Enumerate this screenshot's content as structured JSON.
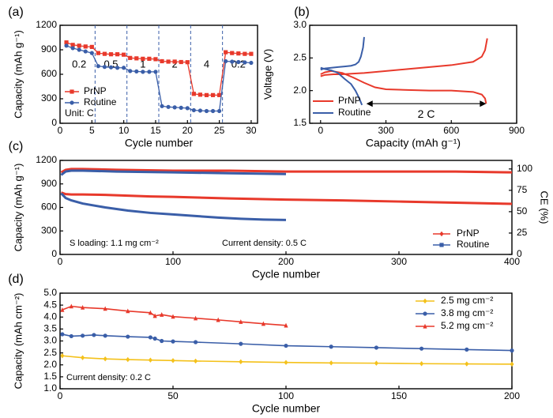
{
  "colors": {
    "prnp": "#e8392b",
    "routine": "#3a5ea8",
    "ld25": "#f4c11a",
    "frame": "#000000"
  },
  "chart_data": [
    {
      "id": "a",
      "panel_label": "(a)",
      "type": "scatter",
      "xlabel": "Cycle number",
      "ylabel": "Capacity (mAh g⁻¹)",
      "xlim": [
        0,
        31
      ],
      "ylim": [
        0,
        1200
      ],
      "xticks": [
        0,
        5,
        10,
        15,
        20,
        25,
        30
      ],
      "yticks": [
        0,
        300,
        600,
        900,
        1200
      ],
      "legend": "bottom-left",
      "unit_text": "Unit: C",
      "rate_dividers": [
        5.5,
        10.5,
        15.5,
        20.5,
        25.5
      ],
      "rate_labels": [
        {
          "text": "0.2",
          "x": 3,
          "y": 600
        },
        {
          "text": "0.5",
          "x": 8,
          "y": 600
        },
        {
          "text": "1",
          "x": 13,
          "y": 600
        },
        {
          "text": "2",
          "x": 18,
          "y": 600
        },
        {
          "text": "4",
          "x": 23,
          "y": 600
        },
        {
          "text": "0.2",
          "x": 28,
          "y": 600
        }
      ],
      "series": [
        {
          "name": "PrNP",
          "color_key": "prnp",
          "marker": "square",
          "x": [
            1,
            2,
            3,
            4,
            5,
            6,
            7,
            8,
            9,
            10,
            11,
            12,
            13,
            14,
            15,
            16,
            17,
            18,
            19,
            20,
            21,
            22,
            23,
            24,
            25,
            26,
            27,
            28,
            29,
            30
          ],
          "y": [
            990,
            960,
            950,
            940,
            935,
            860,
            850,
            845,
            845,
            840,
            800,
            795,
            790,
            790,
            785,
            760,
            755,
            755,
            750,
            748,
            360,
            350,
            345,
            345,
            345,
            870,
            860,
            855,
            850,
            850
          ]
        },
        {
          "name": "Routine",
          "color_key": "routine",
          "marker": "circle",
          "x": [
            1,
            2,
            3,
            4,
            5,
            6,
            7,
            8,
            9,
            10,
            11,
            12,
            13,
            14,
            15,
            16,
            17,
            18,
            19,
            20,
            21,
            22,
            23,
            24,
            25,
            26,
            27,
            28,
            29,
            30
          ],
          "y": [
            950,
            920,
            900,
            880,
            860,
            700,
            690,
            685,
            680,
            680,
            640,
            635,
            630,
            630,
            630,
            210,
            200,
            195,
            190,
            185,
            160,
            155,
            150,
            150,
            150,
            760,
            755,
            750,
            745,
            740
          ]
        }
      ]
    },
    {
      "id": "b",
      "panel_label": "(b)",
      "type": "line",
      "xlabel": "Capacity (mAh g⁻¹)",
      "ylabel": "Voltage (V)",
      "xlim": [
        -50,
        900
      ],
      "ylim": [
        1.5,
        3.0
      ],
      "xticks": [
        0,
        300,
        600,
        900
      ],
      "yticks": [
        1.5,
        2.0,
        2.5,
        3.0
      ],
      "legend": "bottom-left",
      "annotation": "2 C",
      "arrow": {
        "x0": 210,
        "x1": 760,
        "y": 1.8
      },
      "series": [
        {
          "name": "PrNP",
          "color_key": "prnp",
          "segments": [
            {
              "x": [
                0,
                20,
                50,
                100,
                150,
                200,
                250,
                300,
                400,
                500,
                600,
                700,
                740,
                755,
                760
              ],
              "y": [
                2.25,
                2.28,
                2.3,
                2.27,
                2.2,
                2.12,
                2.05,
                2.02,
                2.01,
                2.0,
                2.0,
                1.98,
                1.94,
                1.88,
                1.8
              ]
            },
            {
              "x": [
                0,
                20,
                60,
                100,
                150,
                200,
                300,
                400,
                500,
                600,
                700,
                740,
                755,
                765
              ],
              "y": [
                2.22,
                2.24,
                2.25,
                2.25,
                2.26,
                2.27,
                2.3,
                2.33,
                2.36,
                2.39,
                2.44,
                2.52,
                2.62,
                2.8
              ]
            }
          ]
        },
        {
          "name": "Routine",
          "color_key": "routine",
          "segments": [
            {
              "x": [
                0,
                20,
                50,
                80,
                110,
                140,
                160,
                175,
                185,
                190
              ],
              "y": [
                2.35,
                2.33,
                2.31,
                2.27,
                2.18,
                2.1,
                2.0,
                1.9,
                1.82,
                1.78
              ]
            },
            {
              "x": [
                0,
                20,
                50,
                80,
                110,
                140,
                160,
                175,
                185,
                195,
                200
              ],
              "y": [
                2.32,
                2.34,
                2.35,
                2.36,
                2.37,
                2.38,
                2.4,
                2.44,
                2.52,
                2.66,
                2.82
              ]
            }
          ]
        }
      ]
    },
    {
      "id": "c",
      "panel_label": "(c)",
      "type": "scatter",
      "xlabel": "Cycle number",
      "ylabel": "Capacity (mAh g⁻¹)",
      "y2label": "CE (%)",
      "xlim": [
        0,
        400
      ],
      "ylim": [
        0,
        1200
      ],
      "y2lim": [
        0,
        110
      ],
      "xticks": [
        0,
        100,
        200,
        300,
        400
      ],
      "yticks": [
        0,
        300,
        600,
        900,
        1200
      ],
      "y2ticks": [
        0,
        25,
        50,
        75,
        100
      ],
      "legend": "bottom-right",
      "notes": [
        "S loading: 1.1 mg cm⁻²",
        "Current density: 0.5 C"
      ],
      "series": [
        {
          "name": "PrNP",
          "color_key": "prnp",
          "axis": "y",
          "x": [
            1,
            5,
            10,
            20,
            40,
            60,
            80,
            100,
            150,
            200,
            250,
            300,
            350,
            400
          ],
          "y": [
            790,
            770,
            765,
            765,
            760,
            750,
            740,
            735,
            715,
            700,
            690,
            675,
            660,
            645
          ]
        },
        {
          "name": "Routine",
          "color_key": "routine",
          "axis": "y",
          "x": [
            1,
            5,
            10,
            20,
            40,
            60,
            80,
            100,
            120,
            140,
            160,
            180,
            200
          ],
          "y": [
            780,
            720,
            690,
            650,
            600,
            560,
            530,
            510,
            490,
            470,
            455,
            445,
            440
          ]
        },
        {
          "name": "PrNP",
          "color_key": "prnp",
          "axis": "y2",
          "x": [
            1,
            5,
            10,
            20,
            50,
            100,
            150,
            200,
            250,
            300,
            350,
            400
          ],
          "y": [
            96,
            99,
            100,
            100,
            99,
            98,
            98,
            97,
            97,
            97,
            97,
            96
          ]
        },
        {
          "name": "Routine",
          "color_key": "routine",
          "axis": "y2",
          "x": [
            1,
            5,
            10,
            20,
            50,
            100,
            150,
            200
          ],
          "y": [
            93,
            97,
            98,
            98,
            97,
            96,
            95,
            94
          ]
        }
      ]
    },
    {
      "id": "d",
      "panel_label": "(d)",
      "type": "scatter",
      "xlabel": "Cycle number",
      "ylabel": "Capacity (mAh cm⁻²)",
      "xlim": [
        0,
        200
      ],
      "ylim": [
        1.0,
        5.0
      ],
      "xticks": [
        0,
        50,
        100,
        150,
        200
      ],
      "yticks": [
        1.0,
        1.5,
        2.0,
        2.5,
        3.0,
        3.5,
        4.0,
        4.5,
        5.0
      ],
      "legend": "top-right",
      "notes": [
        "Current density: 0.2 C"
      ],
      "series": [
        {
          "name": "2.5 mg cm⁻²",
          "color_key": "ld25",
          "marker": "diamond",
          "x": [
            1,
            10,
            20,
            30,
            40,
            50,
            60,
            80,
            100,
            120,
            140,
            160,
            180,
            200
          ],
          "y": [
            2.38,
            2.3,
            2.25,
            2.22,
            2.2,
            2.18,
            2.16,
            2.13,
            2.1,
            2.08,
            2.07,
            2.05,
            2.04,
            2.03
          ]
        },
        {
          "name": "3.8 mg cm⁻²",
          "color_key": "routine",
          "marker": "circle",
          "x": [
            1,
            5,
            10,
            15,
            20,
            30,
            40,
            42,
            45,
            50,
            60,
            80,
            100,
            120,
            140,
            160,
            180,
            200
          ],
          "y": [
            3.28,
            3.2,
            3.22,
            3.25,
            3.22,
            3.18,
            3.15,
            3.1,
            3.0,
            2.98,
            2.95,
            2.88,
            2.8,
            2.76,
            2.72,
            2.68,
            2.64,
            2.6
          ]
        },
        {
          "name": "5.2 mg cm⁻²",
          "color_key": "prnp",
          "marker": "triangle",
          "x": [
            1,
            5,
            10,
            20,
            30,
            40,
            42,
            45,
            50,
            60,
            70,
            80,
            90,
            100
          ],
          "y": [
            4.3,
            4.45,
            4.4,
            4.35,
            4.25,
            4.18,
            4.05,
            4.1,
            4.02,
            3.95,
            3.88,
            3.8,
            3.72,
            3.65
          ]
        }
      ]
    }
  ]
}
